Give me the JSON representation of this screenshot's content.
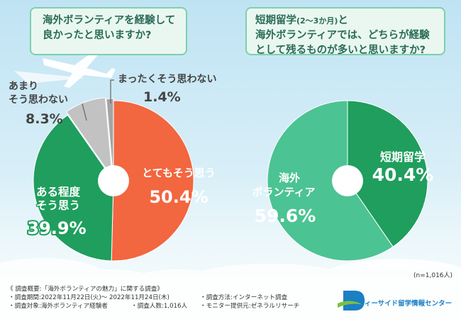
{
  "questions": {
    "left": [
      "海外ボランティアを経験して",
      "良かったと思いますか?"
    ],
    "right": {
      "line1_main": "短期留学",
      "line1_paren": "(2〜3か月)",
      "line1_end": "と",
      "line2": "海外ボランティアでは、どちらが経験",
      "line3": "として残るものが多いと思いますか?"
    }
  },
  "chart_data": [
    {
      "type": "pie",
      "categories": [
        "とてもそう思う",
        "ある程度そう思う",
        "あまりそう思わない",
        "まったくそう思わない"
      ],
      "values": [
        50.4,
        39.9,
        8.3,
        1.4
      ],
      "value_labels": [
        "50.4%",
        "39.9%",
        "8.3%",
        "1.4%"
      ],
      "colors": [
        "#f26640",
        "#1f9e5d",
        "#c2c2c2",
        "#a4a4a4"
      ]
    },
    {
      "type": "pie",
      "categories": [
        "短期留学",
        "海外ボランティア"
      ],
      "values": [
        40.4,
        59.6
      ],
      "value_labels": [
        "40.4%",
        "59.6%"
      ],
      "colors": [
        "#1f9e5d",
        "#4cc393"
      ]
    }
  ],
  "footnote": {
    "n": "(n=1,016人)",
    "summary": "《 調査概要:「海外ボランティアの魅力」に関する調査》",
    "period": "・調査期間:2022年11月22日(火)〜 2022年11月24日(木)",
    "target": "・調査対象:海外ボランティア経験者",
    "count": "・調査人数:1,016人",
    "method": "・調査方法:インターネット調査",
    "provider": "・モニター提供元:ゼネラルリサーチ"
  },
  "brand": {
    "name": "ディーサイド留学情報センター",
    "color": "#1b7fc4"
  }
}
